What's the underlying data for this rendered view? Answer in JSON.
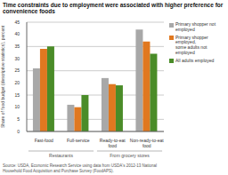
{
  "chart_data": {
    "type": "bar",
    "title": "Time constraints due to employment were associated with higher preference for convenience foods",
    "ylabel": "Share of food budget (descriptive statistics), percent",
    "categories": [
      "Fast-food",
      "Full-service",
      "Ready-to-eat food",
      "Non-ready-to-eat food"
    ],
    "series": [
      {
        "name": "Primary shopper not employed",
        "color": "#a8a8a8",
        "values": [
          26,
          11,
          22,
          42
        ]
      },
      {
        "name": "Primary shopper employed,\nsome adults not employed",
        "color": "#e07820",
        "values": [
          34,
          10,
          19.5,
          37
        ]
      },
      {
        "name": "All adults employed",
        "color": "#4a8c28",
        "values": [
          35,
          15,
          19,
          32
        ]
      }
    ],
    "ylim": [
      0,
      45
    ],
    "yticks": [
      0,
      5,
      10,
      15,
      20,
      25,
      30,
      35,
      40,
      45
    ],
    "grid": true,
    "legend": "right",
    "annotations": [
      {
        "text": "Restaurants",
        "categories": [
          "Fast-food",
          "Full-service"
        ]
      },
      {
        "text": "From grocery stores",
        "categories": [
          "Ready-to-eat food",
          "Non-ready-to-eat food"
        ]
      }
    ],
    "source": "Source: USDA, Economic Research Service using data from USDA's 2012-13 National\nHousehold Food Acquisition and Purchase Survey (FoodAPS)."
  }
}
